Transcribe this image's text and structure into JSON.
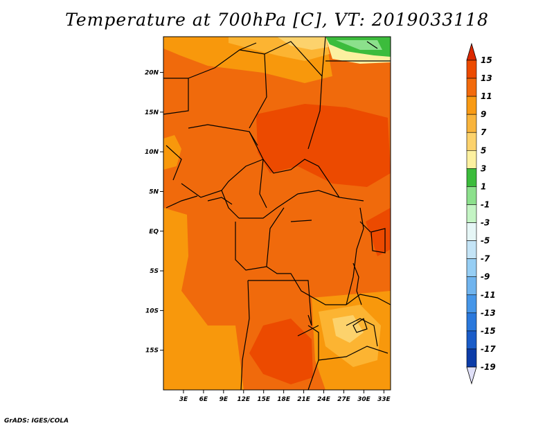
{
  "title": "Temperature at 700hPa [C], VT: 2019033118",
  "credit": "GrADS: IGES/COLA",
  "map": {
    "lon_range": [
      0,
      34
    ],
    "lat_range": [
      -20,
      24.5
    ],
    "lat_ticks": [
      {
        "value": 20,
        "label": "20N"
      },
      {
        "value": 15,
        "label": "15N"
      },
      {
        "value": 10,
        "label": "10N"
      },
      {
        "value": 5,
        "label": "5N"
      },
      {
        "value": 0,
        "label": "EQ"
      },
      {
        "value": -5,
        "label": "5S"
      },
      {
        "value": -10,
        "label": "10S"
      },
      {
        "value": -15,
        "label": "15S"
      }
    ],
    "lon_ticks": [
      {
        "value": 3,
        "label": "3E"
      },
      {
        "value": 6,
        "label": "6E"
      },
      {
        "value": 9,
        "label": "9E"
      },
      {
        "value": 12,
        "label": "12E"
      },
      {
        "value": 15,
        "label": "15E"
      },
      {
        "value": 18,
        "label": "18E"
      },
      {
        "value": 21,
        "label": "21E"
      },
      {
        "value": 24,
        "label": "24E"
      },
      {
        "value": 27,
        "label": "27E"
      },
      {
        "value": 30,
        "label": "30E"
      },
      {
        "value": 33,
        "label": "33E"
      }
    ]
  },
  "colorbar": {
    "labels": [
      "15",
      "13",
      "11",
      "9",
      "7",
      "5",
      "3",
      "1",
      "-1",
      "-3",
      "-5",
      "-7",
      "-9",
      "-11",
      "-13",
      "-15",
      "-17",
      "-19"
    ],
    "colors": [
      "#dc2800",
      "#ec4a00",
      "#f26a0c",
      "#f89a14",
      "#f8b43c",
      "#fcd26c",
      "#fcf0a0",
      "#3cbc3c",
      "#8ce08c",
      "#c4f4c4",
      "#e6f6f6",
      "#c4e4f6",
      "#96cef4",
      "#70b4ee",
      "#4696e8",
      "#2a78dc",
      "#1a5cc8",
      "#0c3ca8",
      "#081870"
    ],
    "top_arrow_color": "#dc2800",
    "bottom_arrow_color": "#e0e0f8"
  },
  "palette": {
    "t11": "#f06a0c",
    "t13": "#ec4a00",
    "t9": "#f8980c",
    "t7": "#fcb432",
    "t5": "#fcd26c",
    "t3": "#fcf0a0",
    "t1": "#3cbc3c",
    "tm1": "#8ce08c"
  }
}
